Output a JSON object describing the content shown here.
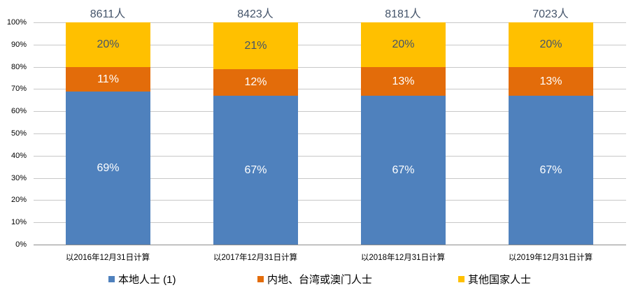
{
  "chart_data": {
    "type": "bar",
    "stacked": true,
    "percent_stacked": true,
    "title": "",
    "xlabel": "",
    "ylabel": "",
    "ylim": [
      0,
      100
    ],
    "y_ticks": [
      "0%",
      "10%",
      "20%",
      "30%",
      "40%",
      "50%",
      "60%",
      "70%",
      "80%",
      "90%",
      "100%"
    ],
    "grid": true,
    "legend_position": "bottom",
    "categories": [
      "以2016年12月31日计算",
      "以2017年12月31日计算",
      "以2018年12月31日计算",
      "以2019年12月31日计算"
    ],
    "totals": [
      "8611人",
      "8423人",
      "8181人",
      "7023人"
    ],
    "series": [
      {
        "name": "本地人士 (1)",
        "color": "#4f81bd",
        "values": [
          69,
          67,
          67,
          67
        ],
        "labels": [
          "69%",
          "67%",
          "67%",
          "67%"
        ],
        "label_color": "#ffffff"
      },
      {
        "name": "内地、台湾或澳门人士",
        "color": "#e36c0a",
        "values": [
          11,
          12,
          13,
          13
        ],
        "labels": [
          "11%",
          "12%",
          "13%",
          "13%"
        ],
        "label_color": "#ffffff"
      },
      {
        "name": "其他国家人士",
        "color": "#ffc000",
        "values": [
          20,
          21,
          20,
          20
        ],
        "labels": [
          "20%",
          "21%",
          "20%",
          "20%"
        ],
        "label_color": "#44546a"
      }
    ]
  }
}
